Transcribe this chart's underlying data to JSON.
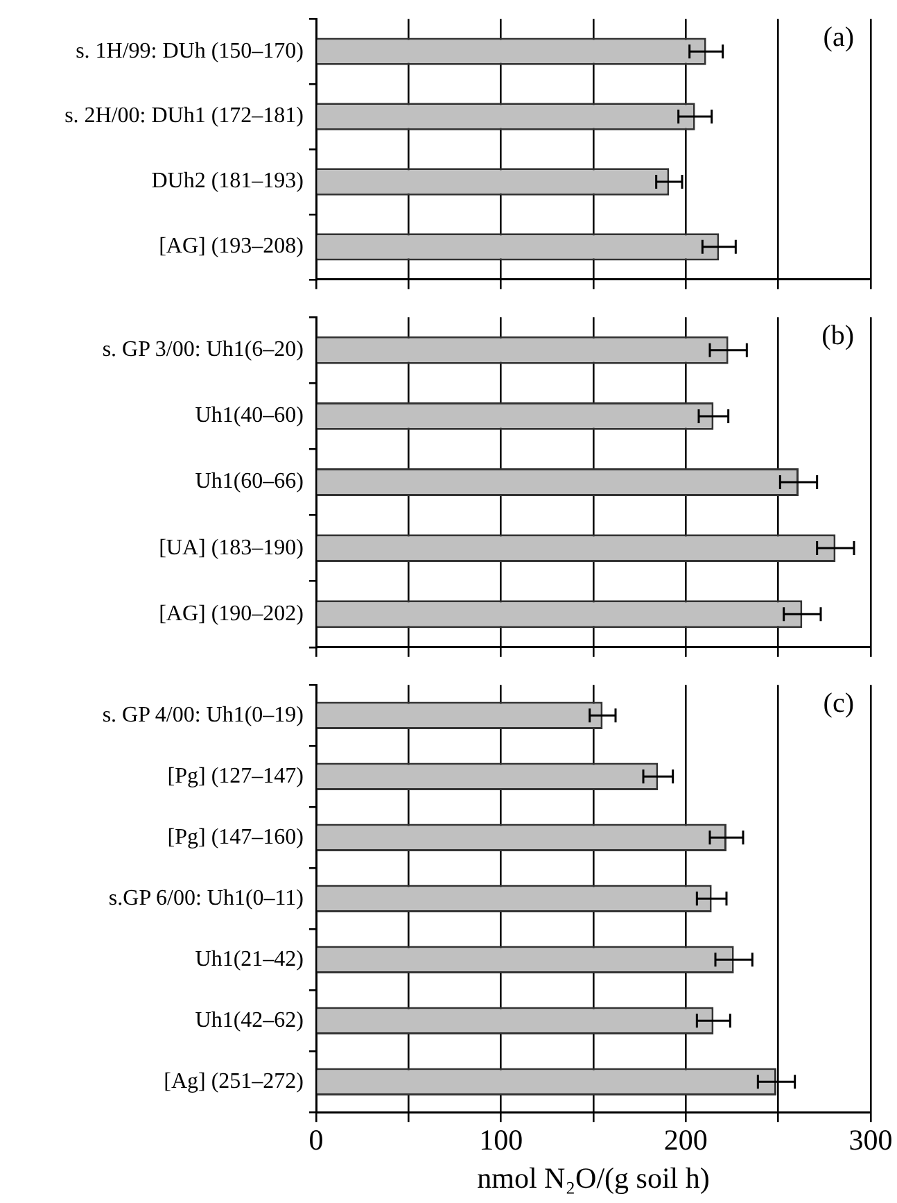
{
  "chart_data": [
    {
      "type": "bar",
      "orientation": "horizontal",
      "categories": [
        "s. 1H/99: DUh (150–170)",
        "s. 2H/00: DUh1 (172–181)",
        "DUh2 (181–193)",
        "[AG] (193–208)"
      ],
      "values": [
        211,
        205,
        191,
        218
      ],
      "errors": [
        9,
        9,
        7,
        9
      ],
      "color": "#c0c0c0",
      "xlim": [
        0,
        300
      ],
      "xticks": [
        0,
        {
          "value": 50,
          "label": null
        },
        100,
        {
          "value": 150,
          "label": null
        },
        200,
        {
          "value": 250,
          "label": null
        },
        300
      ],
      "grid": "x",
      "tick_labels": "y",
      "annotations": [
        "(a)"
      ]
    },
    {
      "type": "bar",
      "orientation": "horizontal",
      "categories": [
        "s. GP 3/00: Uh1(6–20)",
        "Uh1(40–60)",
        "Uh1(60–66)",
        "[UA] (183–190)",
        "[AG] (190–202)"
      ],
      "values": [
        223,
        215,
        261,
        281,
        263
      ],
      "errors": [
        10,
        8,
        10,
        10,
        10
      ],
      "color": "#c0c0c0",
      "xlim": [
        0,
        300
      ],
      "xticks": [
        0,
        {
          "value": 50,
          "label": null
        },
        100,
        {
          "value": 150,
          "label": null
        },
        200,
        {
          "value": 250,
          "label": null
        },
        300
      ],
      "grid": "x",
      "tick_labels": "y",
      "annotations": [
        "(b)"
      ]
    },
    {
      "type": "bar",
      "orientation": "horizontal",
      "categories": [
        "s. GP 4/00: Uh1(0–19)",
        "[Pg] (127–147)",
        "[Pg] (147–160)",
        "s.GP 6/00: Uh1(0–11)",
        "Uh1(21–42)",
        "Uh1(42–62)",
        "[Ag] (251–272)"
      ],
      "values": [
        155,
        185,
        222,
        214,
        226,
        215,
        249
      ],
      "errors": [
        7,
        8,
        9,
        8,
        10,
        9,
        10
      ],
      "color": "#c0c0c0",
      "xlim": [
        0,
        300
      ],
      "xticks": [
        0,
        {
          "value": 50,
          "label": null
        },
        100,
        {
          "value": 150,
          "label": null
        },
        200,
        {
          "value": 250,
          "label": null
        },
        300
      ],
      "grid": "x",
      "xlabel": "nmol N₂O/(g soil h)",
      "annotations": [
        "(c)"
      ]
    }
  ]
}
